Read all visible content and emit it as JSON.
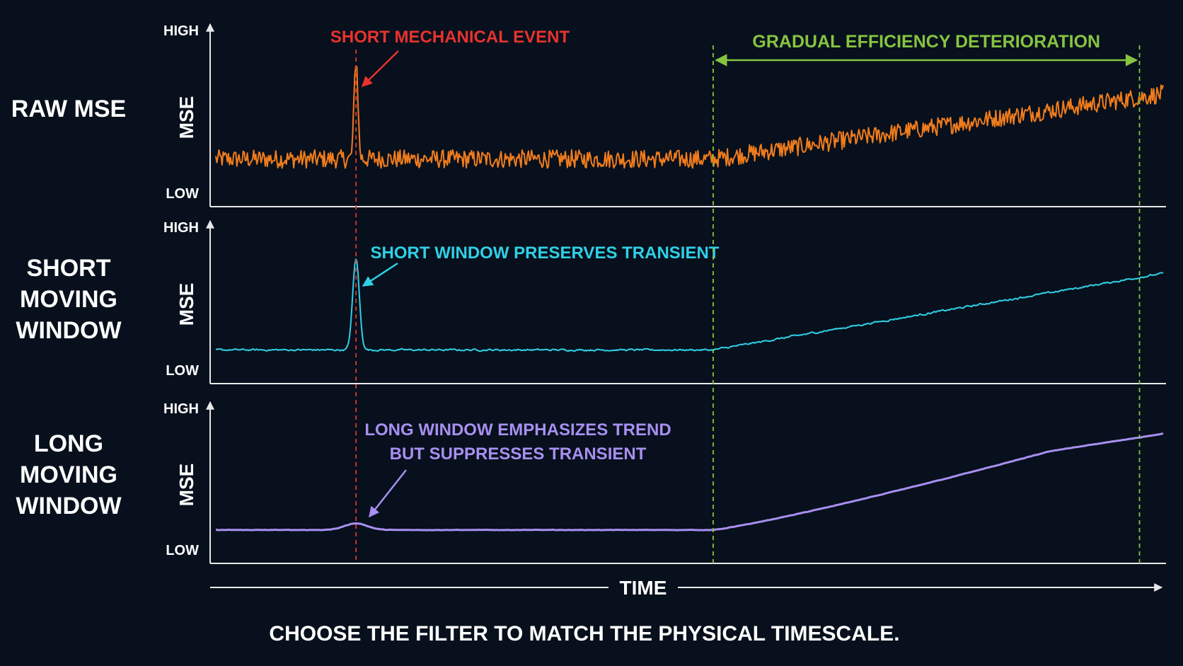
{
  "colors": {
    "background": "#07101c",
    "axis": "#e8e8e8",
    "text": "#ffffff",
    "event": "#e8332e",
    "deterioration": "#86c440",
    "raw": "#f07c1c",
    "short": "#2fd0e6",
    "long": "#a88ff0"
  },
  "footer": "CHOOSE THE FILTER TO MATCH THE PHYSICAL TIMESCALE.",
  "time_axis_label": "TIME",
  "chart_data": [
    {
      "type": "line",
      "row_label": [
        "RAW MSE"
      ],
      "ylabel": "MSE",
      "ytick_high": "HIGH",
      "ytick_low": "LOW",
      "annotation": [
        "SHORT MECHANICAL EVENT"
      ],
      "annotation_color": "#e8332e",
      "series": [
        {
          "color": "#f07c1c",
          "baseline": 0.26,
          "trend_end": 0.65,
          "noise": 0.055,
          "spike": {
            "t": 0.148,
            "peak": 0.86,
            "width": 0.002
          }
        }
      ],
      "ylim": [
        0,
        1
      ]
    },
    {
      "type": "line",
      "row_label": [
        "SHORT",
        "MOVING",
        "WINDOW"
      ],
      "ylabel": "MSE",
      "ytick_high": "HIGH",
      "ytick_low": "LOW",
      "annotation": [
        "SHORT WINDOW PRESERVES TRANSIENT"
      ],
      "annotation_color": "#2fd0e6",
      "series": [
        {
          "color": "#2fd0e6",
          "baseline": 0.2,
          "trend_end": 0.72,
          "noise": 0.012,
          "spike": {
            "t": 0.148,
            "peak": 0.82,
            "width": 0.0035
          }
        }
      ],
      "ylim": [
        0,
        1
      ]
    },
    {
      "type": "line",
      "row_label": [
        "LONG",
        "MOVING",
        "WINDOW"
      ],
      "ylabel": "MSE",
      "ytick_high": "HIGH",
      "ytick_low": "LOW",
      "annotation": [
        "LONG WINDOW EMPHASIZES TREND",
        "BUT SUPPRESSES TRANSIENT"
      ],
      "annotation_color": "#a88ff0",
      "series": [
        {
          "color": "#a88ff0",
          "baseline": 0.2,
          "trend_end": 0.86,
          "noise": 0.0025,
          "spike": {
            "t": 0.148,
            "peak": 0.245,
            "width": 0.012
          }
        }
      ],
      "ylim": [
        0,
        1
      ]
    }
  ],
  "markers": {
    "event_t": 0.148,
    "deterioration_start_t": 0.525,
    "deterioration_end_t": 0.975,
    "deterioration_label": "GRADUAL EFFICIENCY DETERIORATION"
  }
}
